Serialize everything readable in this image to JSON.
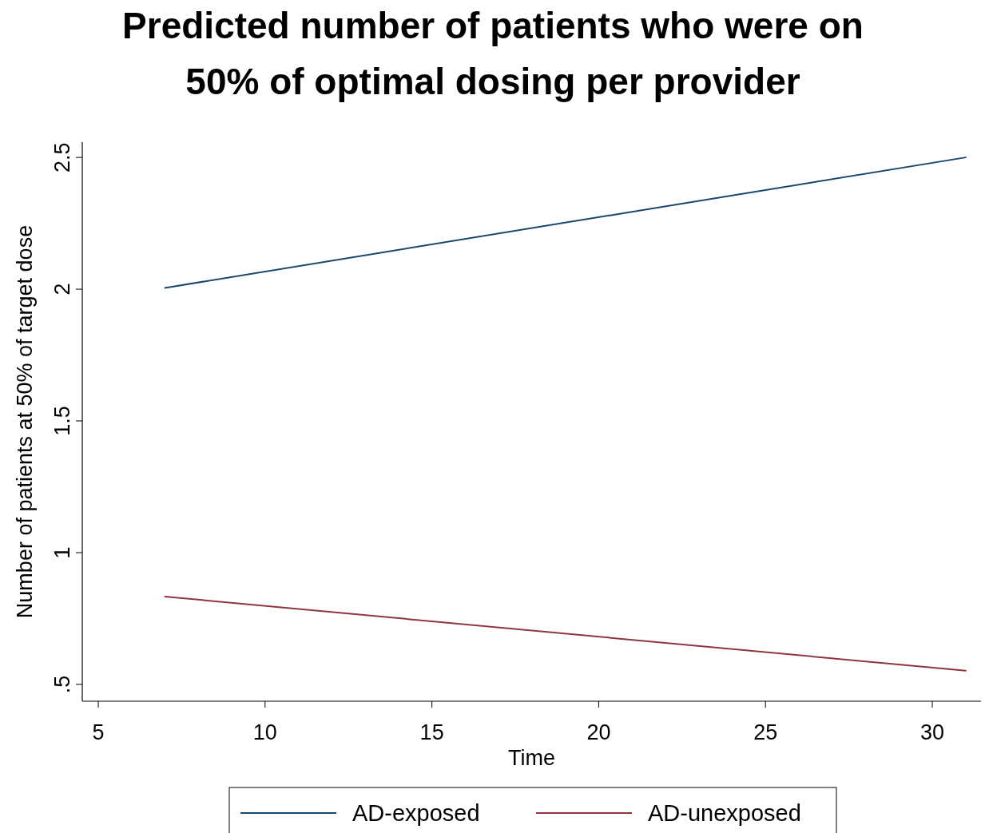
{
  "chart_data": {
    "type": "line",
    "title": "Predicted number of patients who were on 50% of optimal dosing per provider",
    "xlabel": "Time",
    "ylabel": "Number of patients at 50% of target dose",
    "x": [
      7,
      31
    ],
    "series": [
      {
        "name": "AD-exposed",
        "color": "#1a476f",
        "values": [
          2.005,
          2.5
        ]
      },
      {
        "name": "AD-unexposed",
        "color": "#90353b",
        "values": [
          0.833,
          0.552
        ]
      }
    ],
    "xlim": [
      4.52,
      31.46
    ],
    "xticks": [
      5,
      10,
      15,
      20,
      25,
      30
    ],
    "ylim": [
      0.436,
      2.558
    ],
    "yticks": [
      {
        "value": 0.5,
        "label": ".5"
      },
      1,
      1.5,
      2,
      2.5
    ],
    "grid": false,
    "legend": "bottom",
    "marker": "none",
    "line_style": "solid"
  }
}
